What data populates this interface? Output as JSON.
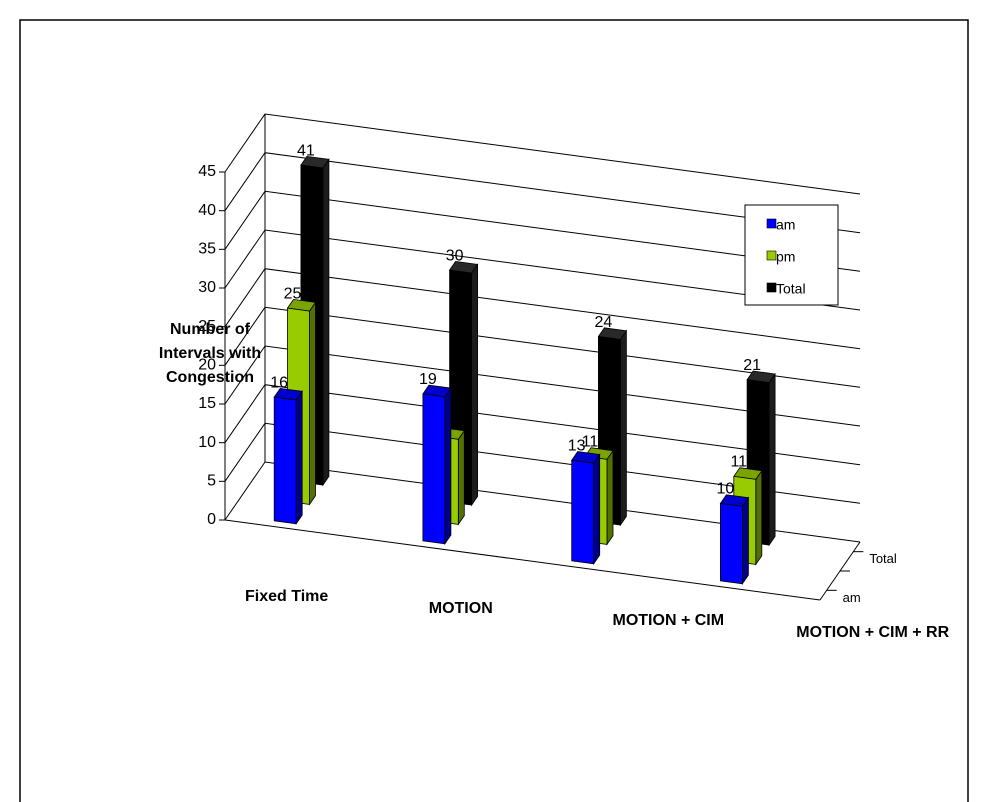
{
  "chart_data": {
    "type": "bar3d",
    "y_label": "Number of Intervals with Congestion",
    "categories": [
      "Fixed Time",
      "MOTION",
      "MOTION + CIM",
      "MOTION + CIM + RR"
    ],
    "series": [
      {
        "name": "am",
        "color": "#0000ff",
        "values": [
          16,
          19,
          13,
          10
        ]
      },
      {
        "name": "pm",
        "color": "#99cc00",
        "values": [
          25,
          11,
          11,
          11
        ]
      },
      {
        "name": "Total",
        "color": "#000000",
        "values": [
          41,
          30,
          24,
          21
        ]
      }
    ],
    "depth_categories": [
      "am",
      null,
      "Total"
    ],
    "ylim": [
      0,
      45
    ],
    "yticks": [
      0,
      5,
      10,
      15,
      20,
      25,
      30,
      35,
      40,
      45
    ],
    "grid": true,
    "legend": "upper right"
  }
}
